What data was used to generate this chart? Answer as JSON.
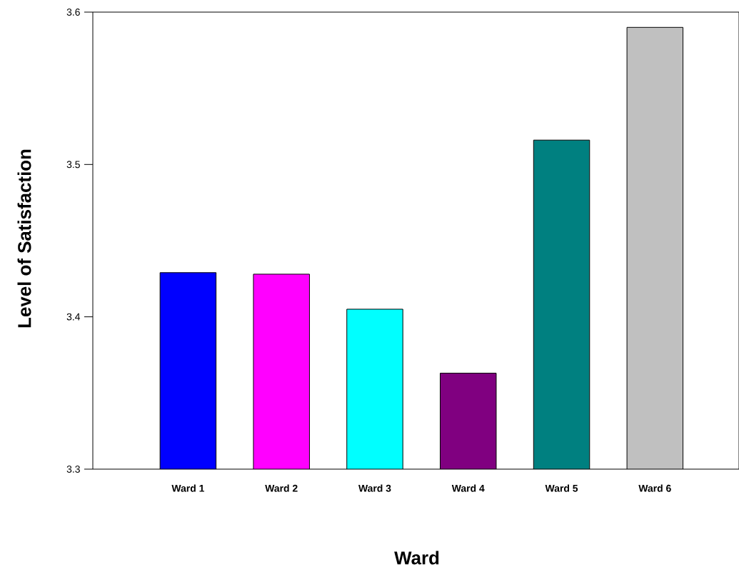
{
  "chart_data": {
    "type": "bar",
    "xlabel": "Ward",
    "ylabel": "Level of Satisfaction",
    "categories": [
      "Ward 1",
      "Ward 2",
      "Ward 3",
      "Ward 4",
      "Ward 5",
      "Ward 6"
    ],
    "values": [
      3.429,
      3.428,
      3.405,
      3.363,
      3.516,
      3.59
    ],
    "colors": [
      "#0000ff",
      "#ff00ff",
      "#00ffff",
      "#800080",
      "#008080",
      "#c0c0c0"
    ],
    "ylim": [
      3.3,
      3.6
    ],
    "yticks": [
      3.3,
      3.4,
      3.5,
      3.6
    ]
  }
}
